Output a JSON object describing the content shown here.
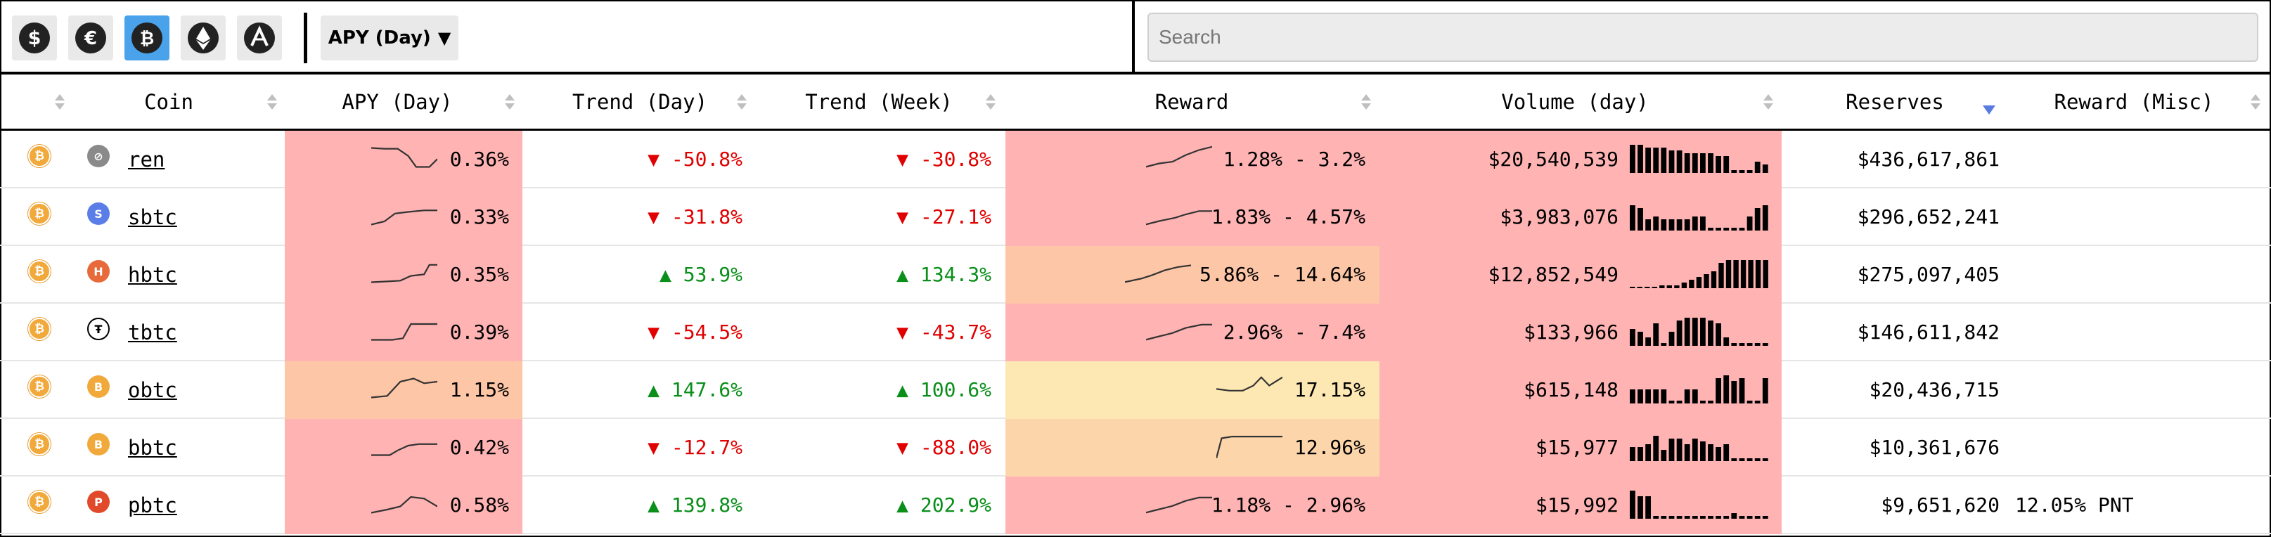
{
  "toolbar": {
    "currencies": [
      {
        "icon": "dollar-icon",
        "active": false
      },
      {
        "icon": "euro-icon",
        "active": false
      },
      {
        "icon": "bitcoin-icon",
        "active": true
      },
      {
        "icon": "ethereum-icon",
        "active": false
      },
      {
        "icon": "arbitrum-icon",
        "active": false
      }
    ],
    "apy_select_label": "APY (Day)",
    "search_placeholder": "Search"
  },
  "columns": {
    "coin": "Coin",
    "apy_day": "APY (Day)",
    "trend_day": "Trend (Day)",
    "trend_week": "Trend (Week)",
    "reward": "Reward",
    "volume_day": "Volume (day)",
    "reserves": "Reserves",
    "reward_misc": "Reward (Misc)"
  },
  "colors": {
    "heat_red": "#ffb3b3",
    "heat_orange": "#fdc6a6",
    "heat_peach": "#fcd5ab",
    "heat_yellow": "#fde7b3",
    "down": "#e00000",
    "up": "#0a8f1a",
    "active_currency": "#4aa3ea"
  },
  "rows": [
    {
      "coin": "ren",
      "logo": "ren-logo-icon",
      "apy": "0.36%",
      "trend_day": "▼ -50.8%",
      "trend_day_dir": "down",
      "trend_week": "▼ -30.8%",
      "trend_week_dir": "down",
      "reward": "1.28% - 3.2%",
      "volume": "$20,540,539",
      "reserves": "$436,617,861",
      "reward_misc": ""
    },
    {
      "coin": "sbtc",
      "logo": "sbtc-logo-icon",
      "apy": "0.33%",
      "trend_day": "▼ -31.8%",
      "trend_day_dir": "down",
      "trend_week": "▼ -27.1%",
      "trend_week_dir": "down",
      "reward": "1.83% - 4.57%",
      "volume": "$3,983,076",
      "reserves": "$296,652,241",
      "reward_misc": ""
    },
    {
      "coin": "hbtc",
      "logo": "hbtc-logo-icon",
      "apy": "0.35%",
      "trend_day": "▲ 53.9%",
      "trend_day_dir": "up",
      "trend_week": "▲ 134.3%",
      "trend_week_dir": "up",
      "reward": "5.86% - 14.64%",
      "volume": "$12,852,549",
      "reserves": "$275,097,405",
      "reward_misc": ""
    },
    {
      "coin": "tbtc",
      "logo": "tbtc-logo-icon",
      "apy": "0.39%",
      "trend_day": "▼ -54.5%",
      "trend_day_dir": "down",
      "trend_week": "▼ -43.7%",
      "trend_week_dir": "down",
      "reward": "2.96% - 7.4%",
      "volume": "$133,966",
      "reserves": "$146,611,842",
      "reward_misc": ""
    },
    {
      "coin": "obtc",
      "logo": "obtc-logo-icon",
      "apy": "1.15%",
      "trend_day": "▲ 147.6%",
      "trend_day_dir": "up",
      "trend_week": "▲ 100.6%",
      "trend_week_dir": "up",
      "reward": "17.15%",
      "volume": "$615,148",
      "reserves": "$20,436,715",
      "reward_misc": ""
    },
    {
      "coin": "bbtc",
      "logo": "bbtc-logo-icon",
      "apy": "0.42%",
      "trend_day": "▼ -12.7%",
      "trend_day_dir": "down",
      "trend_week": "▼ -88.0%",
      "trend_week_dir": "down",
      "reward": "12.96%",
      "volume": "$15,977",
      "reserves": "$10,361,676",
      "reward_misc": ""
    },
    {
      "coin": "pbtc",
      "logo": "pbtc-logo-icon",
      "apy": "0.58%",
      "trend_day": "▲ 139.8%",
      "trend_day_dir": "up",
      "trend_week": "▲ 202.9%",
      "trend_week_dir": "up",
      "reward": "1.18% - 2.96%",
      "volume": "$15,992",
      "reserves": "$9,651,620",
      "reward_misc": "12.05% PNT"
    }
  ]
}
